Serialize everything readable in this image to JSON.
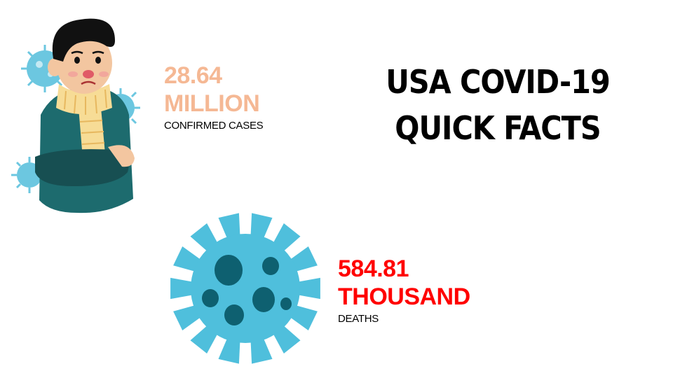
{
  "title": {
    "line1": "USA COVID-19",
    "line2": "QUICK FACTS"
  },
  "stats": {
    "cases": {
      "number": "28.64",
      "unit": "MILLION",
      "label": "CONFIRMED CASES",
      "color": "#f5b894"
    },
    "deaths": {
      "number": "584.81",
      "unit": "THOUSAND",
      "label": "DEATHS",
      "color": "#ff0000"
    }
  },
  "illustrations": {
    "sick_person": "sick-person-icon",
    "virus": "virus-icon",
    "virus_color": "#4fbfdc",
    "virus_spot_color": "#0e6070"
  }
}
